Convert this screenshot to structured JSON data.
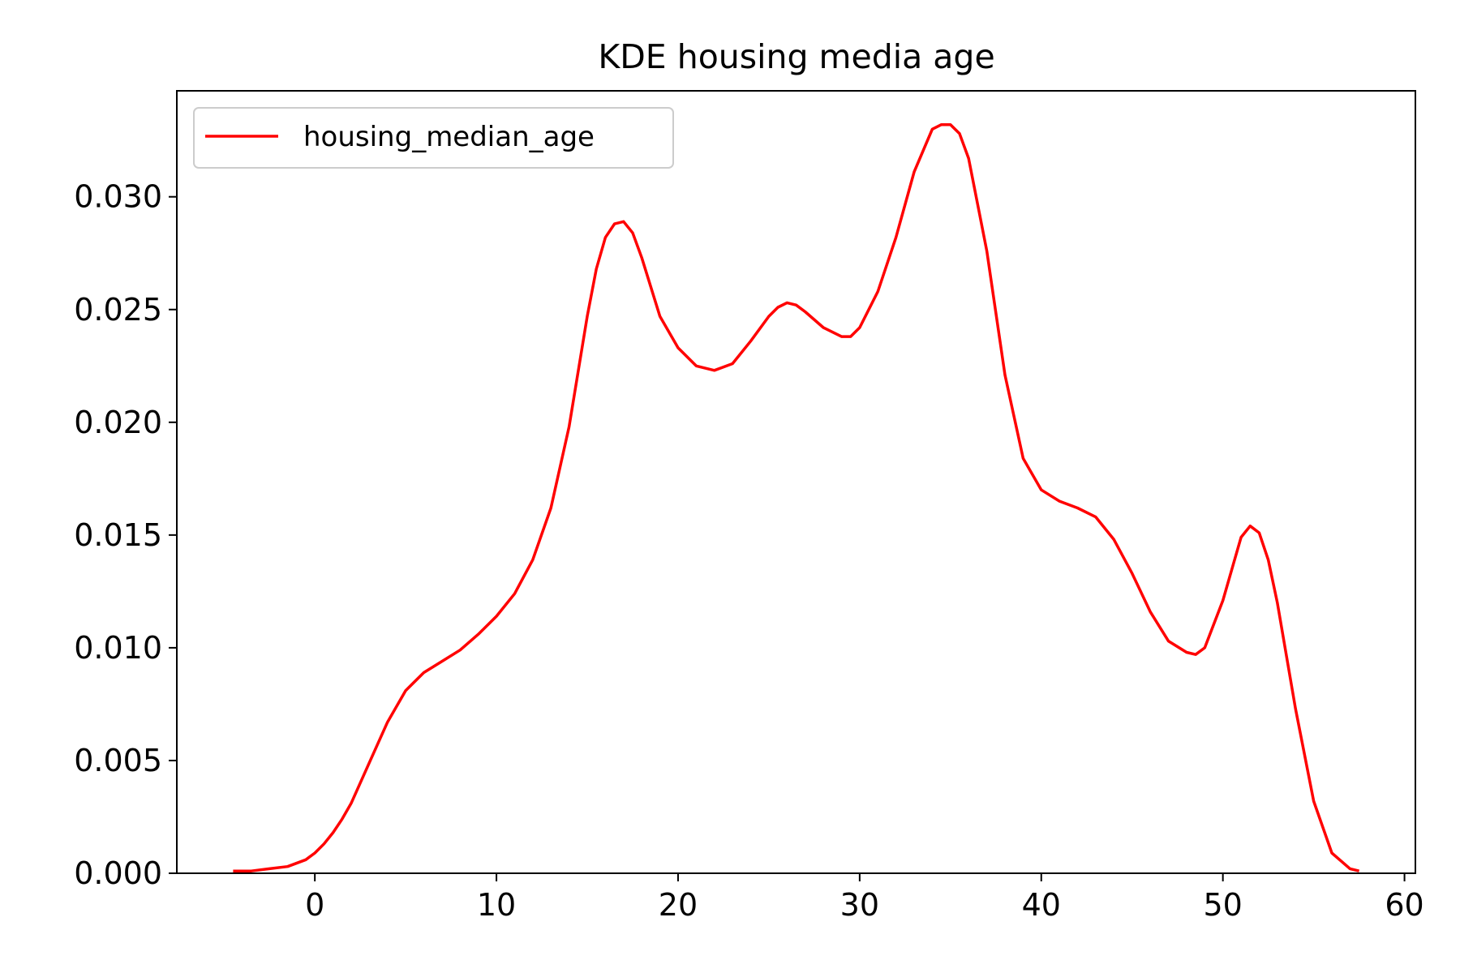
{
  "chart_data": {
    "type": "line",
    "title": "KDE housing media age",
    "xlabel": "",
    "ylabel": "",
    "xlim": [
      -7.6,
      60.6
    ],
    "ylim": [
      0,
      0.0347
    ],
    "xticks": [
      0,
      10,
      20,
      30,
      40,
      50,
      60
    ],
    "xtick_labels": [
      "0",
      "10",
      "20",
      "30",
      "40",
      "50",
      "60"
    ],
    "yticks": [
      0.0,
      0.005,
      0.01,
      0.015,
      0.02,
      0.025,
      0.03
    ],
    "ytick_labels": [
      "0.000",
      "0.005",
      "0.010",
      "0.015",
      "0.020",
      "0.025",
      "0.030"
    ],
    "grid": false,
    "legend_position": "top-left",
    "series": [
      {
        "name": "housing_median_age",
        "color": "#ff0000",
        "x": [
          -4.5,
          -3.5,
          -2.5,
          -1.5,
          -0.5,
          0,
          0.5,
          1,
          1.5,
          2,
          3,
          4,
          5,
          6,
          7,
          8,
          9,
          10,
          11,
          12,
          13,
          14,
          15,
          15.5,
          16,
          16.5,
          17,
          17.5,
          18,
          19,
          20,
          21,
          22,
          23,
          24,
          25,
          25.5,
          26,
          26.5,
          27,
          28,
          29,
          29.5,
          30,
          31,
          32,
          33,
          34,
          34.5,
          35,
          35.5,
          36,
          37,
          38,
          39,
          40,
          41,
          42,
          43,
          44,
          45,
          46,
          47,
          48,
          48.5,
          49,
          50,
          51,
          51.5,
          52,
          52.5,
          53,
          54,
          55,
          56,
          57,
          57.5
        ],
        "values": [
          0.0001,
          0.0001,
          0.0002,
          0.0003,
          0.0006,
          0.0009,
          0.0013,
          0.0018,
          0.0024,
          0.0031,
          0.0049,
          0.0067,
          0.0081,
          0.0089,
          0.0094,
          0.0099,
          0.0106,
          0.0114,
          0.0124,
          0.0139,
          0.0162,
          0.0198,
          0.0247,
          0.0268,
          0.0282,
          0.0288,
          0.0289,
          0.0284,
          0.0273,
          0.0247,
          0.0233,
          0.0225,
          0.0223,
          0.0226,
          0.0236,
          0.0247,
          0.0251,
          0.0253,
          0.0252,
          0.0249,
          0.0242,
          0.0238,
          0.0238,
          0.0242,
          0.0258,
          0.0282,
          0.0311,
          0.033,
          0.0332,
          0.0332,
          0.0328,
          0.0317,
          0.0276,
          0.0221,
          0.0184,
          0.017,
          0.0165,
          0.0162,
          0.0158,
          0.0148,
          0.0133,
          0.0116,
          0.0103,
          0.0098,
          0.0097,
          0.01,
          0.0121,
          0.0149,
          0.0154,
          0.0151,
          0.0139,
          0.012,
          0.0073,
          0.0032,
          0.0009,
          0.0002,
          0.0001
        ]
      }
    ]
  }
}
